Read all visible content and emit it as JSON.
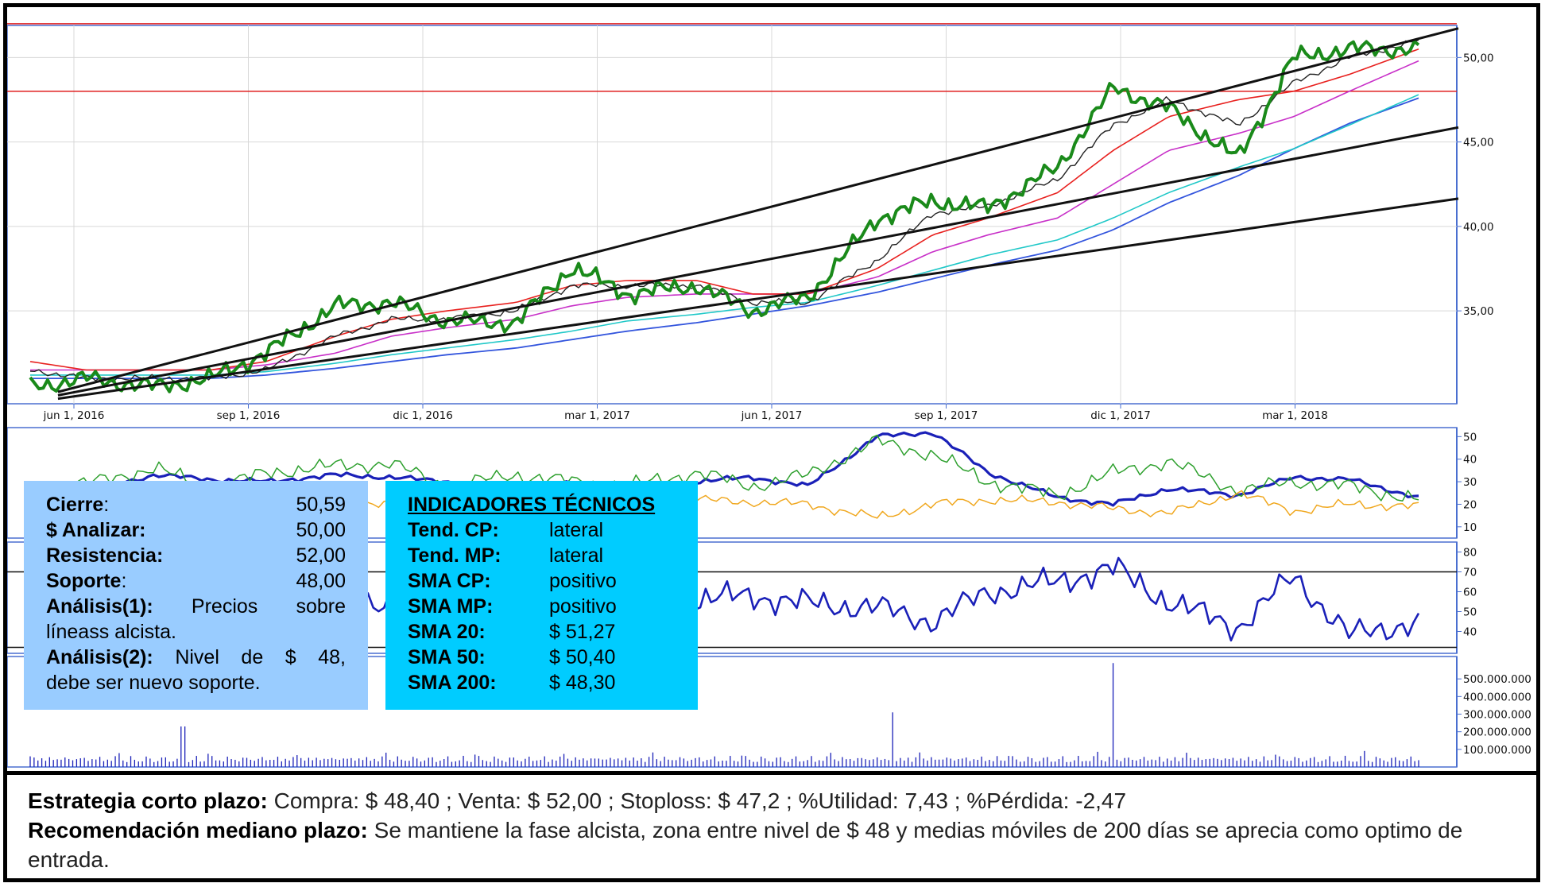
{
  "chart_data": [
    {
      "type": "line",
      "panel": "price",
      "x_ticks": [
        "jun 1, 2016",
        "sep 1, 2016",
        "dic 1, 2016",
        "mar 1, 2017",
        "jun 1, 2017",
        "sep 1, 2017",
        "dic 1, 2017",
        "mar 1, 2018"
      ],
      "y_ticks": [
        "35,00",
        "40,00",
        "45,00",
        "50,00"
      ],
      "ylim": [
        29.5,
        51.9
      ],
      "horizontal_lines": [
        52.0,
        48.0
      ],
      "x": [
        0,
        4,
        9,
        13,
        17,
        22,
        26,
        30,
        35,
        39,
        43,
        48,
        52,
        56,
        61,
        65,
        69,
        74,
        78,
        82,
        87,
        91,
        95,
        100
      ],
      "series": [
        {
          "values": [
            30.5,
            31.0,
            30.5,
            31.0,
            32.5,
            35.3,
            35.5,
            34.4,
            34.3,
            37.6,
            36.0,
            36.5,
            35.0,
            35.8,
            40.5,
            41.5,
            41.1,
            43.5,
            48.2,
            47.0,
            44.0,
            50.0,
            50.5,
            50.5
          ]
        },
        {
          "values": [
            31.5,
            31.0,
            31.0,
            31.0,
            31.5,
            33.5,
            34.5,
            34.5,
            35.0,
            36.5,
            36.5,
            36.5,
            35.5,
            35.5,
            38.0,
            40.8,
            41.2,
            42.8,
            46.0,
            47.5,
            46.0,
            48.5,
            50.0,
            51.0
          ]
        },
        {
          "values": [
            32.0,
            31.5,
            31.5,
            31.5,
            32.0,
            33.5,
            34.5,
            35.0,
            35.5,
            36.5,
            36.8,
            36.8,
            36.0,
            36.0,
            37.5,
            39.5,
            40.5,
            42.0,
            44.5,
            46.5,
            47.5,
            48.0,
            49.0,
            50.5
          ]
        },
        {
          "values": [
            31.5,
            31.5,
            31.5,
            31.5,
            31.8,
            32.5,
            33.5,
            34.0,
            34.5,
            35.3,
            35.8,
            36.0,
            36.0,
            36.0,
            37.0,
            38.5,
            39.5,
            40.5,
            42.5,
            44.5,
            45.5,
            46.5,
            48.0,
            49.8
          ]
        },
        {
          "values": [
            31.2,
            31.2,
            31.2,
            31.2,
            31.4,
            31.9,
            32.4,
            32.8,
            33.3,
            33.8,
            34.4,
            34.8,
            35.2,
            35.5,
            36.5,
            37.4,
            38.3,
            39.2,
            40.5,
            42.0,
            43.5,
            44.6,
            46.0,
            47.8
          ]
        },
        {
          "values": [
            31.0,
            31.0,
            31.0,
            31.0,
            31.2,
            31.6,
            32.0,
            32.4,
            32.8,
            33.3,
            33.8,
            34.3,
            34.8,
            35.3,
            36.1,
            36.9,
            37.7,
            38.6,
            39.8,
            41.4,
            43.0,
            44.6,
            46.1,
            47.6
          ]
        }
      ],
      "trendlines": [
        {
          "x": [
            2,
            100
          ],
          "y": [
            30.2,
            51.1
          ]
        },
        {
          "x": [
            2,
            100
          ],
          "y": [
            30.0,
            45.4
          ]
        },
        {
          "x": [
            2,
            100
          ],
          "y": [
            29.8,
            41.3
          ]
        }
      ],
      "colors": [
        "#1a8a1a",
        "#222222",
        "#e8201e",
        "#c830c8",
        "#20c8c8",
        "#3355dd"
      ]
    },
    {
      "type": "line",
      "panel": "directional-indicator",
      "y_ticks": [
        "50",
        "40",
        "30",
        "20",
        "10"
      ],
      "ylim": [
        5,
        54
      ],
      "x": [
        0,
        4,
        9,
        13,
        17,
        22,
        26,
        30,
        35,
        39,
        43,
        48,
        52,
        56,
        61,
        65,
        69,
        74,
        78,
        82,
        87,
        91,
        95,
        100
      ],
      "series": [
        {
          "values": [
            25,
            26,
            33,
            31,
            30,
            33,
            32,
            30,
            28,
            29,
            27,
            30,
            32,
            28,
            50,
            52,
            34,
            23,
            20,
            27,
            24,
            32,
            31,
            23
          ]
        },
        {
          "values": [
            28,
            29,
            36,
            27,
            34,
            37,
            38,
            28,
            33,
            30,
            28,
            34,
            28,
            33,
            48,
            42,
            30,
            24,
            34,
            39,
            26,
            30,
            28,
            22
          ]
        },
        {
          "values": [
            20,
            21,
            19,
            23,
            22,
            21,
            20,
            22,
            24,
            21,
            20,
            22,
            21,
            20,
            14,
            20,
            22,
            21,
            18,
            16,
            25,
            17,
            20,
            19
          ]
        }
      ],
      "colors": [
        "#1a20b8",
        "#2ea02e",
        "#f0a820"
      ]
    },
    {
      "type": "line",
      "panel": "oscillator",
      "y_ticks": [
        "80",
        "70",
        "60",
        "50",
        "40"
      ],
      "ylim": [
        29,
        85
      ],
      "horizontal_lines": [
        70,
        32
      ],
      "x": [
        0,
        4,
        9,
        13,
        17,
        22,
        26,
        30,
        35,
        39,
        43,
        48,
        52,
        56,
        61,
        65,
        69,
        74,
        78,
        82,
        87,
        91,
        95,
        100
      ],
      "series": [
        {
          "values": [
            55,
            58,
            62,
            60,
            54,
            57,
            55,
            52,
            51,
            55,
            53,
            56,
            58,
            54,
            52,
            45,
            60,
            65,
            72,
            55,
            42,
            68,
            38,
            45
          ]
        }
      ],
      "colors": [
        "#1a20b8"
      ]
    },
    {
      "type": "bar",
      "panel": "volume",
      "y_ticks": [
        "500.000.000",
        "400.000.000",
        "300.000.000",
        "200.000.000",
        "100.000.000"
      ],
      "ylim": [
        0,
        600000000
      ],
      "spikes": [
        {
          "x": 11,
          "value": 230000000
        },
        {
          "x": 62,
          "value": 310000000
        },
        {
          "x": 78,
          "value": 590000000
        }
      ],
      "typical_value": 50000000,
      "colors": [
        "#1a20b8"
      ]
    }
  ],
  "info_box": {
    "rows": [
      {
        "label": "Cierre",
        "sep": ":",
        "value": "50,59"
      },
      {
        "label": "$ Analizar:",
        "sep": "",
        "value": "50,00"
      },
      {
        "label": "Resistencia:",
        "sep": "",
        "value": "52,00"
      },
      {
        "label": "Soporte",
        "sep": ":",
        "value": "48,00"
      }
    ],
    "analysis1_label": "Análisis(1):",
    "analysis1_text": " Precios sobre",
    "analysis1_cont": "líneass alcista.",
    "analysis2_label": "Análisis(2):",
    "analysis2_text": " Nivel de $ 48,",
    "analysis2_cont": "debe ser nuevo soporte."
  },
  "indicators_box": {
    "title": "INDICADORES TÉCNICOS",
    "rows": [
      {
        "label": "Tend. CP:",
        "value": "lateral"
      },
      {
        "label": "Tend. MP:",
        "value": "lateral"
      },
      {
        "label": "SMA  CP:",
        "value": "positivo"
      },
      {
        "label": "SMA  MP:",
        "value": " positivo"
      },
      {
        "label": "SMA 20:",
        "value": "$ 51,27"
      },
      {
        "label": "SMA 50:",
        "value": "$ 50,40"
      },
      {
        "label": "SMA 200:",
        "value": "$ 48,30"
      }
    ]
  },
  "footer": {
    "strategy_label": "Estrategia corto plazo:",
    "strategy_text": " Compra: $ 48,40 ; Venta: $ 52,00 ; Stoploss: $ 47,2 ; %Utilidad: 7,43 ; %Pérdida: -2,47",
    "recommendation_label": "Recomendación mediano plazo:",
    "recommendation_text": " Se mantiene la fase alcista, zona entre nivel de $ 48 y medias móviles de 200 días se aprecia como optimo de entrada."
  }
}
